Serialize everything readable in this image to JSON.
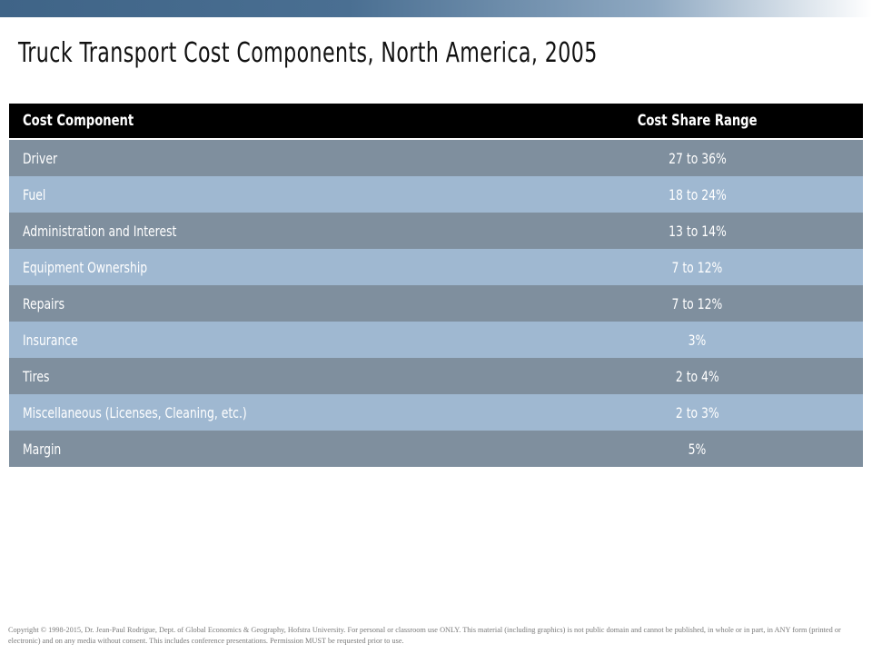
{
  "title": "Truck Transport Cost Components, North America, 2005",
  "table": {
    "headers": {
      "component": "Cost Component",
      "range": "Cost Share Range"
    },
    "rows": [
      {
        "component": "Driver",
        "range": "27 to 36%"
      },
      {
        "component": "Fuel",
        "range": "18 to 24%"
      },
      {
        "component": "Administration and Interest",
        "range": "13 to 14%"
      },
      {
        "component": "Equipment Ownership",
        "range": "7 to 12%"
      },
      {
        "component": "Repairs",
        "range": "7 to 12%"
      },
      {
        "component": "Insurance",
        "range": "3%"
      },
      {
        "component": "Tires",
        "range": "2 to 4%"
      },
      {
        "component": "Miscellaneous (Licenses, Cleaning, etc.)",
        "range": "2 to 3%"
      },
      {
        "component": "Margin",
        "range": "5%"
      }
    ]
  },
  "footer": {
    "copyright": "Copyright © 1998-2015, Dr. Jean-Paul Rodrigue, Dept. of Global Economics & Geography, Hofstra University. For personal or classroom use ONLY. This material (including graphics) is not public domain and cannot be published, in whole or in part, in ANY form (printed or electronic) and on any media without consent. This includes conference presentations. Permission MUST be requested prior to use."
  },
  "colors": {
    "header_bg": "#000000",
    "row_dark": "#7f8f9e",
    "row_light": "#9fb8d1",
    "band_dark": "#3f6487"
  }
}
